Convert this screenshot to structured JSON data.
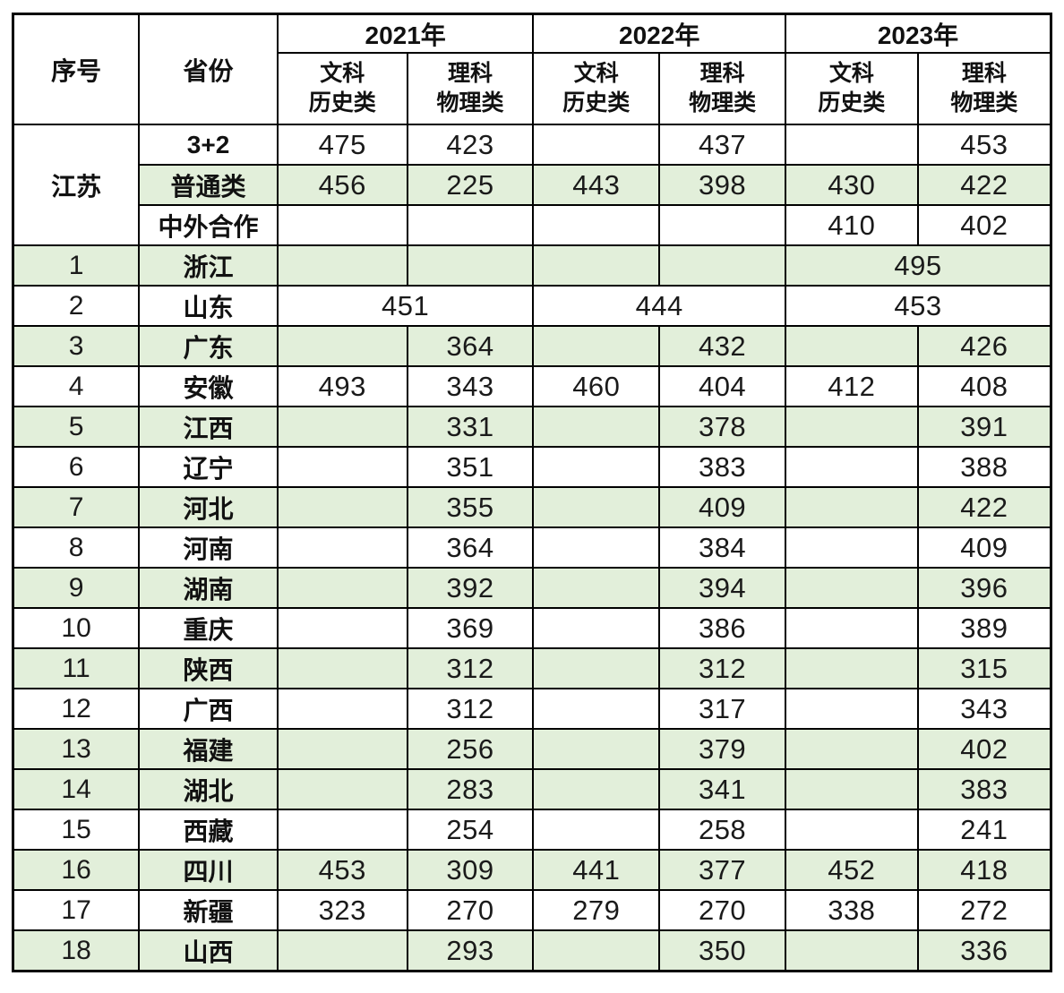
{
  "colors": {
    "header_bg": "#92D050",
    "row_alt_bg": "#E2EFDA",
    "border": "#000000"
  },
  "table": {
    "header": {
      "col_index": "序号",
      "col_province": "省份",
      "years": [
        "2021年",
        "2022年",
        "2023年"
      ],
      "subheaders": [
        {
          "line1": "文科",
          "line2": "历史类"
        },
        {
          "line1": "理科",
          "line2": "物理类"
        },
        {
          "line1": "文科",
          "line2": "历史类"
        },
        {
          "line1": "理科",
          "line2": "物理类"
        },
        {
          "line1": "文科",
          "line2": "历史类"
        },
        {
          "line1": "理科",
          "line2": "物理类"
        }
      ]
    },
    "jiangsu_group": {
      "region": "江苏",
      "rows": [
        {
          "category": "3+2",
          "scores": [
            "475",
            "423",
            "",
            "437",
            "",
            "453"
          ],
          "shaded": false
        },
        {
          "category": "普通类",
          "scores": [
            "456",
            "225",
            "443",
            "398",
            "430",
            "422"
          ],
          "shaded": true
        },
        {
          "category": "中外合作",
          "scores": [
            "",
            "",
            "",
            "",
            "410",
            "402"
          ],
          "shaded": false
        }
      ]
    },
    "province_rows": [
      {
        "num": "1",
        "name": "浙江",
        "layout": "merged-2023",
        "scores": [
          "",
          "",
          "",
          ""
        ],
        "merged": {
          "y2023": "495"
        },
        "shaded": true
      },
      {
        "num": "2",
        "name": "山东",
        "layout": "merged-all",
        "merged": {
          "y2021": "451",
          "y2022": "444",
          "y2023": "453"
        },
        "shaded": false
      },
      {
        "num": "3",
        "name": "广东",
        "layout": "normal",
        "scores": [
          "",
          "364",
          "",
          "432",
          "",
          "426"
        ],
        "shaded": true
      },
      {
        "num": "4",
        "name": "安徽",
        "layout": "normal",
        "scores": [
          "493",
          "343",
          "460",
          "404",
          "412",
          "408"
        ],
        "shaded": false
      },
      {
        "num": "5",
        "name": "江西",
        "layout": "normal",
        "scores": [
          "",
          "331",
          "",
          "378",
          "",
          "391"
        ],
        "shaded": true
      },
      {
        "num": "6",
        "name": "辽宁",
        "layout": "normal",
        "scores": [
          "",
          "351",
          "",
          "383",
          "",
          "388"
        ],
        "shaded": false
      },
      {
        "num": "7",
        "name": "河北",
        "layout": "normal",
        "scores": [
          "",
          "355",
          "",
          "409",
          "",
          "422"
        ],
        "shaded": true
      },
      {
        "num": "8",
        "name": "河南",
        "layout": "normal",
        "scores": [
          "",
          "364",
          "",
          "384",
          "",
          "409"
        ],
        "shaded": false
      },
      {
        "num": "9",
        "name": "湖南",
        "layout": "normal",
        "scores": [
          "",
          "392",
          "",
          "394",
          "",
          "396"
        ],
        "shaded": true
      },
      {
        "num": "10",
        "name": "重庆",
        "layout": "normal",
        "scores": [
          "",
          "369",
          "",
          "386",
          "",
          "389"
        ],
        "shaded": false
      },
      {
        "num": "11",
        "name": "陕西",
        "layout": "normal",
        "scores": [
          "",
          "312",
          "",
          "312",
          "",
          "315"
        ],
        "shaded": true
      },
      {
        "num": "12",
        "name": "广西",
        "layout": "normal",
        "scores": [
          "",
          "312",
          "",
          "317",
          "",
          "343"
        ],
        "shaded": false
      },
      {
        "num": "13",
        "name": "福建",
        "layout": "normal",
        "scores": [
          "",
          "256",
          "",
          "379",
          "",
          "402"
        ],
        "shaded": true
      },
      {
        "num": "14",
        "name": "湖北",
        "layout": "normal",
        "scores": [
          "",
          "283",
          "",
          "341",
          "",
          "383"
        ],
        "shaded": true
      },
      {
        "num": "15",
        "name": "西藏",
        "layout": "normal",
        "scores": [
          "",
          "254",
          "",
          "258",
          "",
          "241"
        ],
        "shaded": false
      },
      {
        "num": "16",
        "name": "四川",
        "layout": "normal",
        "scores": [
          "453",
          "309",
          "441",
          "377",
          "452",
          "418"
        ],
        "shaded": true
      },
      {
        "num": "17",
        "name": "新疆",
        "layout": "normal",
        "scores": [
          "323",
          "270",
          "279",
          "270",
          "338",
          "272"
        ],
        "shaded": false
      },
      {
        "num": "18",
        "name": "山西",
        "layout": "normal",
        "scores": [
          "",
          "293",
          "",
          "350",
          "",
          "336"
        ],
        "shaded": true
      }
    ]
  }
}
